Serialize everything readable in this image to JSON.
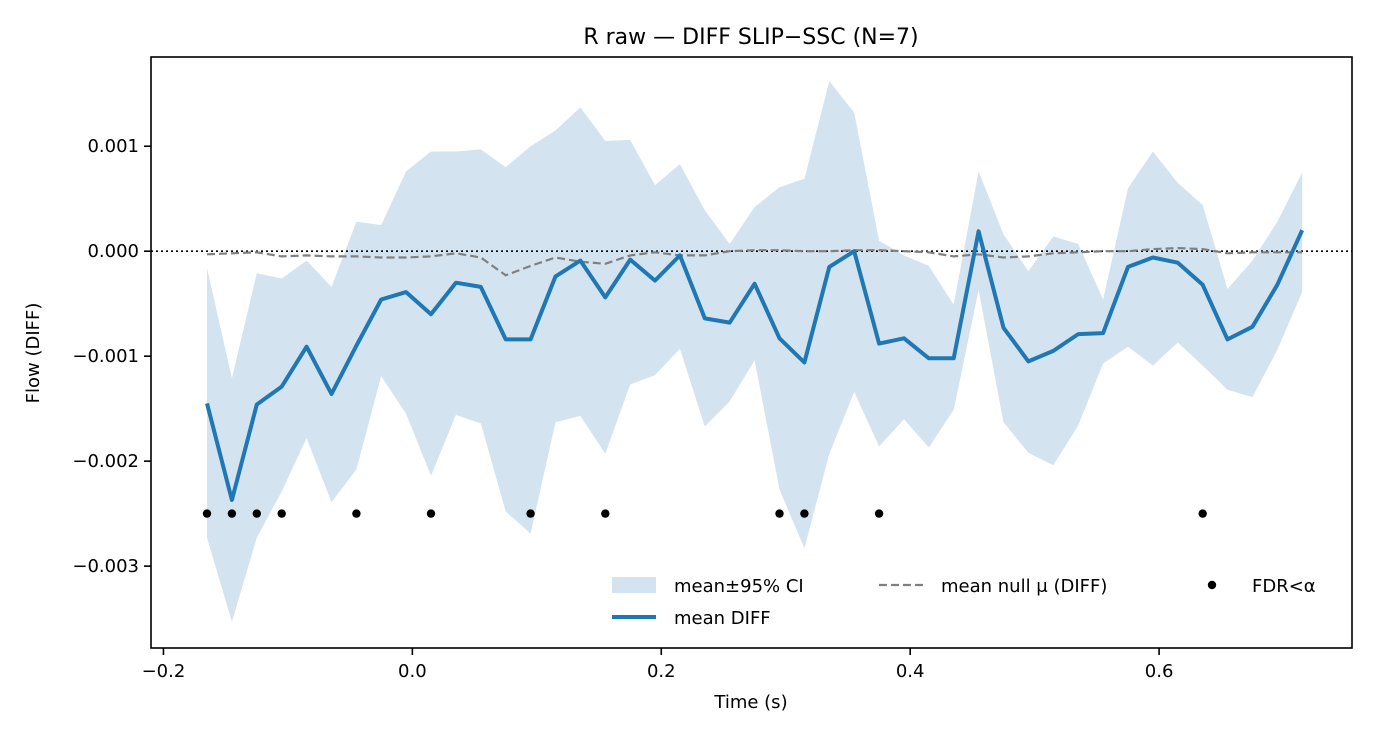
{
  "chart_data": {
    "type": "line",
    "title": "R raw — DIFF SLIP−SSC (N=7)",
    "xlabel": "Time (s)",
    "ylabel": "Flow (DIFF)",
    "xlim": [
      -0.21,
      0.755
    ],
    "ylim": [
      -0.00378,
      0.00185
    ],
    "grid": false,
    "legend_position": "lower right",
    "x_ticks": [
      -0.2,
      0.0,
      0.2,
      0.4,
      0.6
    ],
    "x_tick_labels": [
      "−0.2",
      "0.0",
      "0.2",
      "0.4",
      "0.6"
    ],
    "y_ticks": [
      0.001,
      0.0,
      -0.001,
      -0.002,
      -0.003
    ],
    "y_tick_labels": [
      "0.001",
      "0.000",
      "−0.001",
      "−0.002",
      "−0.003"
    ],
    "zero_line": 0.0,
    "x": [
      -0.165,
      -0.145,
      -0.125,
      -0.105,
      -0.085,
      -0.065,
      -0.045,
      -0.025,
      -0.005,
      0.015,
      0.035,
      0.055,
      0.075,
      0.095,
      0.115,
      0.135,
      0.155,
      0.175,
      0.195,
      0.215,
      0.235,
      0.255,
      0.275,
      0.295,
      0.315,
      0.335,
      0.355,
      0.375,
      0.395,
      0.415,
      0.435,
      0.455,
      0.475,
      0.495,
      0.515,
      0.535,
      0.555,
      0.575,
      0.595,
      0.615,
      0.635,
      0.655,
      0.675,
      0.695,
      0.715
    ],
    "series": [
      {
        "name": "mean±95% CI",
        "style": "band",
        "color": "#d3e4f0",
        "upper": [
          -0.00016,
          -0.00121,
          -0.00021,
          -0.00026,
          -9e-05,
          -0.00034,
          0.00028,
          0.00025,
          0.00076,
          0.00095,
          0.00095,
          0.00097,
          0.0008,
          0.001,
          0.00115,
          0.00137,
          0.00105,
          0.00106,
          0.00063,
          0.00083,
          0.00039,
          7e-05,
          0.00042,
          0.00061,
          0.00069,
          0.00162,
          0.00132,
          0.0001,
          -4e-05,
          -0.00014,
          -0.00051,
          0.00076,
          0.00016,
          -0.00019,
          0.00014,
          7e-05,
          -0.00046,
          0.0006,
          0.00095,
          0.00065,
          0.00044,
          -0.00036,
          -9e-05,
          0.00028,
          0.00075
        ],
        "lower": [
          -0.00273,
          -0.00353,
          -0.00273,
          -0.00229,
          -0.00178,
          -0.00239,
          -0.00208,
          -0.00119,
          -0.00155,
          -0.00214,
          -0.00156,
          -0.00164,
          -0.00248,
          -0.00269,
          -0.00163,
          -0.00157,
          -0.00193,
          -0.00127,
          -0.00118,
          -0.00093,
          -0.00167,
          -0.00143,
          -0.00104,
          -0.00227,
          -0.00283,
          -0.00193,
          -0.00134,
          -0.00186,
          -0.0016,
          -0.00187,
          -0.00151,
          -0.00037,
          -0.00163,
          -0.00192,
          -0.00204,
          -0.00166,
          -0.00107,
          -0.00091,
          -0.00109,
          -0.00087,
          -0.00109,
          -0.00132,
          -0.00139,
          -0.00094,
          -0.00039
        ]
      },
      {
        "name": "mean DIFF",
        "style": "solid",
        "color": "#1f77b4",
        "values": [
          -0.00145,
          -0.00237,
          -0.00146,
          -0.00129,
          -0.00091,
          -0.00136,
          -0.0009,
          -0.00046,
          -0.00039,
          -0.0006,
          -0.0003,
          -0.00034,
          -0.00084,
          -0.00084,
          -0.00024,
          -9e-05,
          -0.00044,
          -8e-05,
          -0.00028,
          -4e-05,
          -0.00064,
          -0.00068,
          -0.00031,
          -0.00083,
          -0.00106,
          -0.00015,
          0.0,
          -0.00088,
          -0.00083,
          -0.00102,
          -0.00102,
          0.00019,
          -0.00073,
          -0.00105,
          -0.00095,
          -0.00079,
          -0.00078,
          -0.00015,
          -6e-05,
          -0.00011,
          -0.00032,
          -0.00084,
          -0.00072,
          -0.00032,
          0.0002
        ]
      },
      {
        "name": "mean null μ (DIFF)",
        "style": "dashed",
        "color": "#808080",
        "values": [
          -3e-05,
          -2e-05,
          -1e-05,
          -5e-05,
          -4e-05,
          -5e-05,
          -5e-05,
          -6e-05,
          -6e-05,
          -5e-05,
          -2e-05,
          -6e-05,
          -0.00023,
          -0.00014,
          -6e-05,
          -0.0001,
          -0.00012,
          -4e-05,
          -1e-05,
          -4e-05,
          -4e-05,
          0.0,
          1e-05,
          1e-05,
          0.0,
          0.0,
          1e-05,
          1e-05,
          0.0,
          -1e-05,
          -5e-05,
          -3e-05,
          -6e-05,
          -5e-05,
          -2e-05,
          -1e-05,
          0.0,
          0.0,
          2e-05,
          3e-05,
          2e-05,
          -2e-05,
          -1e-05,
          -1e-05,
          -1e-05
        ]
      },
      {
        "name": "FDR<α",
        "style": "markers",
        "color": "#000000",
        "x": [
          -0.165,
          -0.145,
          -0.125,
          -0.105,
          -0.045,
          0.015,
          0.095,
          0.155,
          0.295,
          0.315,
          0.375,
          0.635
        ],
        "y": [
          -0.0025,
          -0.0025,
          -0.0025,
          -0.0025,
          -0.0025,
          -0.0025,
          -0.0025,
          -0.0025,
          -0.0025,
          -0.0025,
          -0.0025,
          -0.0025
        ]
      }
    ],
    "legend": [
      {
        "label": "mean±95% CI",
        "kind": "band"
      },
      {
        "label": "mean null μ (DIFF)",
        "kind": "dashed"
      },
      {
        "label": "FDR<α",
        "kind": "marker"
      },
      {
        "label": "mean DIFF",
        "kind": "solid"
      }
    ]
  }
}
